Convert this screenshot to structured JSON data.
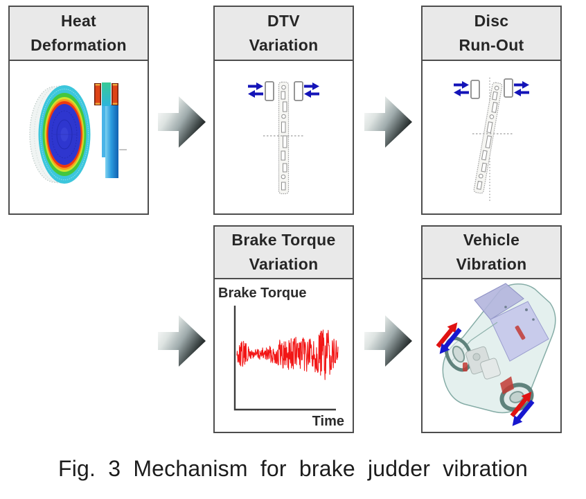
{
  "caption": "Fig. 3 Mechanism for brake judder vibration",
  "boxes": [
    {
      "id": "heat-deformation",
      "line1": "Heat",
      "line2": "Deformation"
    },
    {
      "id": "dtv-variation",
      "line1": "DTV",
      "line2": "Variation"
    },
    {
      "id": "disc-run-out",
      "line1": "Disc",
      "line2": "Run-Out"
    },
    {
      "id": "brake-torque-variation",
      "line1": "Brake Torque",
      "line2": "Variation"
    },
    {
      "id": "vehicle-vibration",
      "line1": "Vehicle",
      "line2": "Vibration"
    }
  ],
  "chart_data": {
    "type": "line",
    "title": "Brake Torque Variation",
    "ylabel": "Brake Torque",
    "xlabel": "Time",
    "series": [
      {
        "name": "brake-torque-signal",
        "color": "#f21616",
        "description": "random oscillating brake-torque trace, amplitude growing over time, no tick labels"
      }
    ],
    "envelope": [
      10,
      22,
      9,
      8,
      9,
      11,
      14,
      25,
      22,
      27,
      21,
      26,
      24,
      30,
      44,
      24,
      20
    ],
    "axes": {
      "ticks": false,
      "frame": "L-shaped"
    }
  },
  "colors": {
    "box_border": "#4d4d4d",
    "header_bg": "#e9e9e9",
    "title_text": "#262626",
    "pad_arrow_blue": "#1414b8",
    "vibration_red": "#e01212",
    "vibration_blue": "#1717cf",
    "signal_red": "#f21616",
    "heat_scale": [
      "#3cc6dc",
      "#44c73e",
      "#cfe32e",
      "#f79a1e",
      "#ee3811",
      "#2e36cf"
    ]
  }
}
